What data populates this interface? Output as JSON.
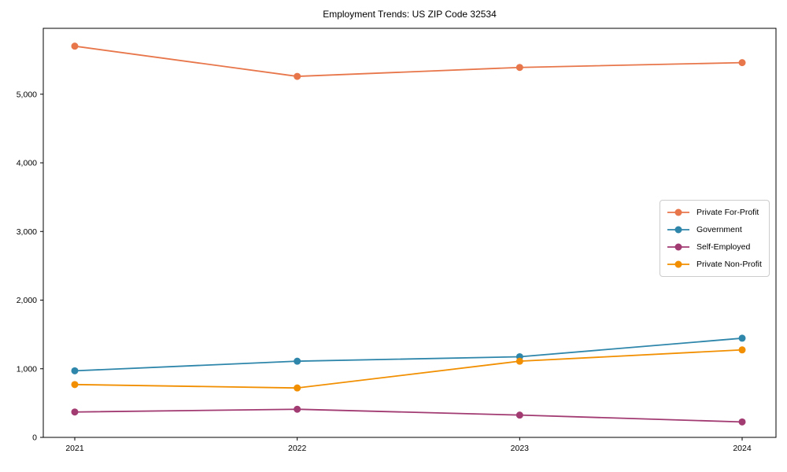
{
  "chart_data": {
    "type": "line",
    "title": "Employment Trends: US ZIP Code 32534",
    "xlabel": "",
    "ylabel": "",
    "categories": [
      "2021",
      "2022",
      "2023",
      "2024"
    ],
    "series": [
      {
        "name": "Private For-Profit",
        "color": "#E8764B",
        "values": [
          5700,
          5260,
          5390,
          5460
        ]
      },
      {
        "name": "Government",
        "color": "#2E86AB",
        "values": [
          970,
          1110,
          1175,
          1445
        ]
      },
      {
        "name": "Self-Employed",
        "color": "#A23B72",
        "values": [
          370,
          410,
          325,
          225
        ]
      },
      {
        "name": "Private Non-Profit",
        "color": "#F18F01",
        "values": [
          770,
          720,
          1110,
          1275
        ]
      }
    ],
    "ylim": [
      0,
      5960
    ],
    "yticks": [
      0,
      1000,
      2000,
      3000,
      4000,
      5000
    ],
    "ytick_labels": [
      "0",
      "1,000",
      "2,000",
      "3,000",
      "4,000",
      "5,000"
    ],
    "grid": false,
    "legend_position": "center-right",
    "marker": "circle",
    "axis_color": "#000000",
    "legend_border_color": "#cccccc",
    "background_color": "#ffffff"
  }
}
